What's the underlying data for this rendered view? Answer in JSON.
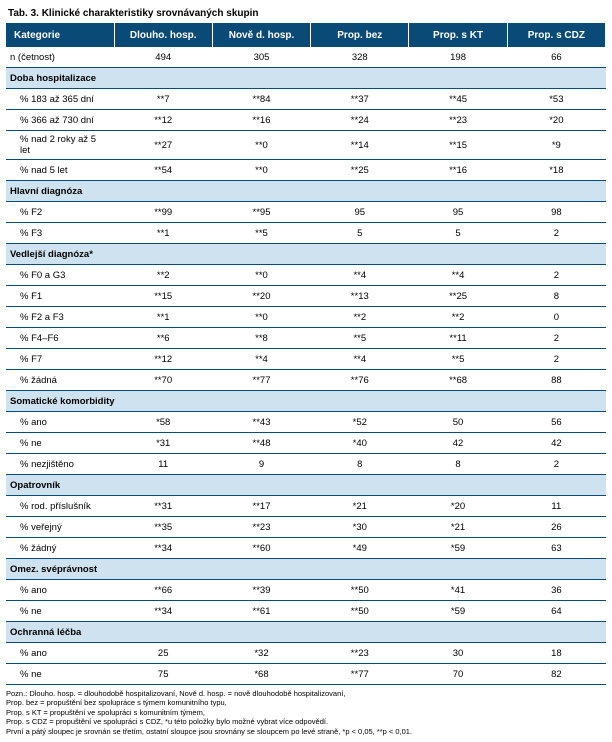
{
  "title": "Tab. 3. Klinické charakteristiky srovnávaných skupin",
  "columns": [
    "Kategorie",
    "Dlouho. hosp.",
    "Nově d. hosp.",
    "Prop. bez",
    "Prop. s KT",
    "Prop. s CDZ"
  ],
  "nrow": {
    "label": "n (četnost)",
    "cells": [
      "494",
      "305",
      "328",
      "198",
      "66"
    ]
  },
  "sections": [
    {
      "title": "Doba hospitalizace",
      "rows": [
        {
          "label": "% 183 až 365 dní",
          "cells": [
            "**7",
            "**84",
            "**37",
            "**45",
            "*53"
          ]
        },
        {
          "label": "% 366 až 730 dní",
          "cells": [
            "**12",
            "**16",
            "**24",
            "**23",
            "*20"
          ]
        },
        {
          "label": "% nad 2 roky až 5 let",
          "cells": [
            "**27",
            "**0",
            "**14",
            "**15",
            "*9"
          ]
        },
        {
          "label": "% nad 5 let",
          "cells": [
            "**54",
            "**0",
            "**25",
            "**16",
            "*18"
          ]
        }
      ]
    },
    {
      "title": "Hlavní diagnóza",
      "rows": [
        {
          "label": "% F2",
          "cells": [
            "**99",
            "**95",
            "95",
            "95",
            "98"
          ]
        },
        {
          "label": "% F3",
          "cells": [
            "**1",
            "**5",
            "5",
            "5",
            "2"
          ]
        }
      ]
    },
    {
      "title": "Vedlejší diagnóza*",
      "rows": [
        {
          "label": "% F0 a G3",
          "cells": [
            "**2",
            "**0",
            "**4",
            "**4",
            "2"
          ]
        },
        {
          "label": "% F1",
          "cells": [
            "**15",
            "**20",
            "**13",
            "**25",
            "8"
          ]
        },
        {
          "label": "% F2 a F3",
          "cells": [
            "**1",
            "**0",
            "**2",
            "**2",
            "0"
          ]
        },
        {
          "label": "% F4–F6",
          "cells": [
            "**6",
            "**8",
            "**5",
            "**11",
            "2"
          ]
        },
        {
          "label": "% F7",
          "cells": [
            "**12",
            "**4",
            "**4",
            "**5",
            "2"
          ]
        },
        {
          "label": "% žádná",
          "cells": [
            "**70",
            "**77",
            "**76",
            "**68",
            "88"
          ]
        }
      ]
    },
    {
      "title": "Somatické komorbidity",
      "rows": [
        {
          "label": "% ano",
          "cells": [
            "*58",
            "**43",
            "*52",
            "50",
            "56"
          ]
        },
        {
          "label": "% ne",
          "cells": [
            "*31",
            "**48",
            "*40",
            "42",
            "42"
          ]
        },
        {
          "label": "% nezjištěno",
          "cells": [
            "11",
            "9",
            "8",
            "8",
            "2"
          ]
        }
      ]
    },
    {
      "title": "Opatrovník",
      "rows": [
        {
          "label": "% rod. příslušník",
          "cells": [
            "**31",
            "**17",
            "*21",
            "*20",
            "11"
          ]
        },
        {
          "label": "% veřejný",
          "cells": [
            "**35",
            "**23",
            "*30",
            "*21",
            "26"
          ]
        },
        {
          "label": "% žádný",
          "cells": [
            "**34",
            "**60",
            "*49",
            "*59",
            "63"
          ]
        }
      ]
    },
    {
      "title": "Omez. svéprávnost",
      "rows": [
        {
          "label": "% ano",
          "cells": [
            "**66",
            "**39",
            "**50",
            "*41",
            "36"
          ]
        },
        {
          "label": "% ne",
          "cells": [
            "**34",
            "**61",
            "**50",
            "*59",
            "64"
          ]
        }
      ]
    },
    {
      "title": "Ochranná léčba",
      "rows": [
        {
          "label": "% ano",
          "cells": [
            "25",
            "*32",
            "**23",
            "30",
            "18"
          ]
        },
        {
          "label": "% ne",
          "cells": [
            "75",
            "*68",
            "**77",
            "70",
            "82"
          ]
        }
      ]
    }
  ],
  "footnotes": [
    "Pozn.: Dlouho. hosp. = dlouhodobě hospitalizovaní, Nově d. hosp. = nově dlouhodobě hospitalizovaní,",
    "Prop. bez = propuštění bez spolupráce s týmem komunitního typu,",
    "Prop. s KT = propuštění ve spolupráci s komunitním týmem,",
    "Prop. s CDZ = propuštění ve spolupráci s CDZ, *u této položky bylo možné vybrat více odpovědí.",
    "První a pátý sloupec je srovnán se třetím, ostatní sloupce jsou srovnány se sloupcem po levé straně, *p < 0,05, **p < 0,01."
  ]
}
